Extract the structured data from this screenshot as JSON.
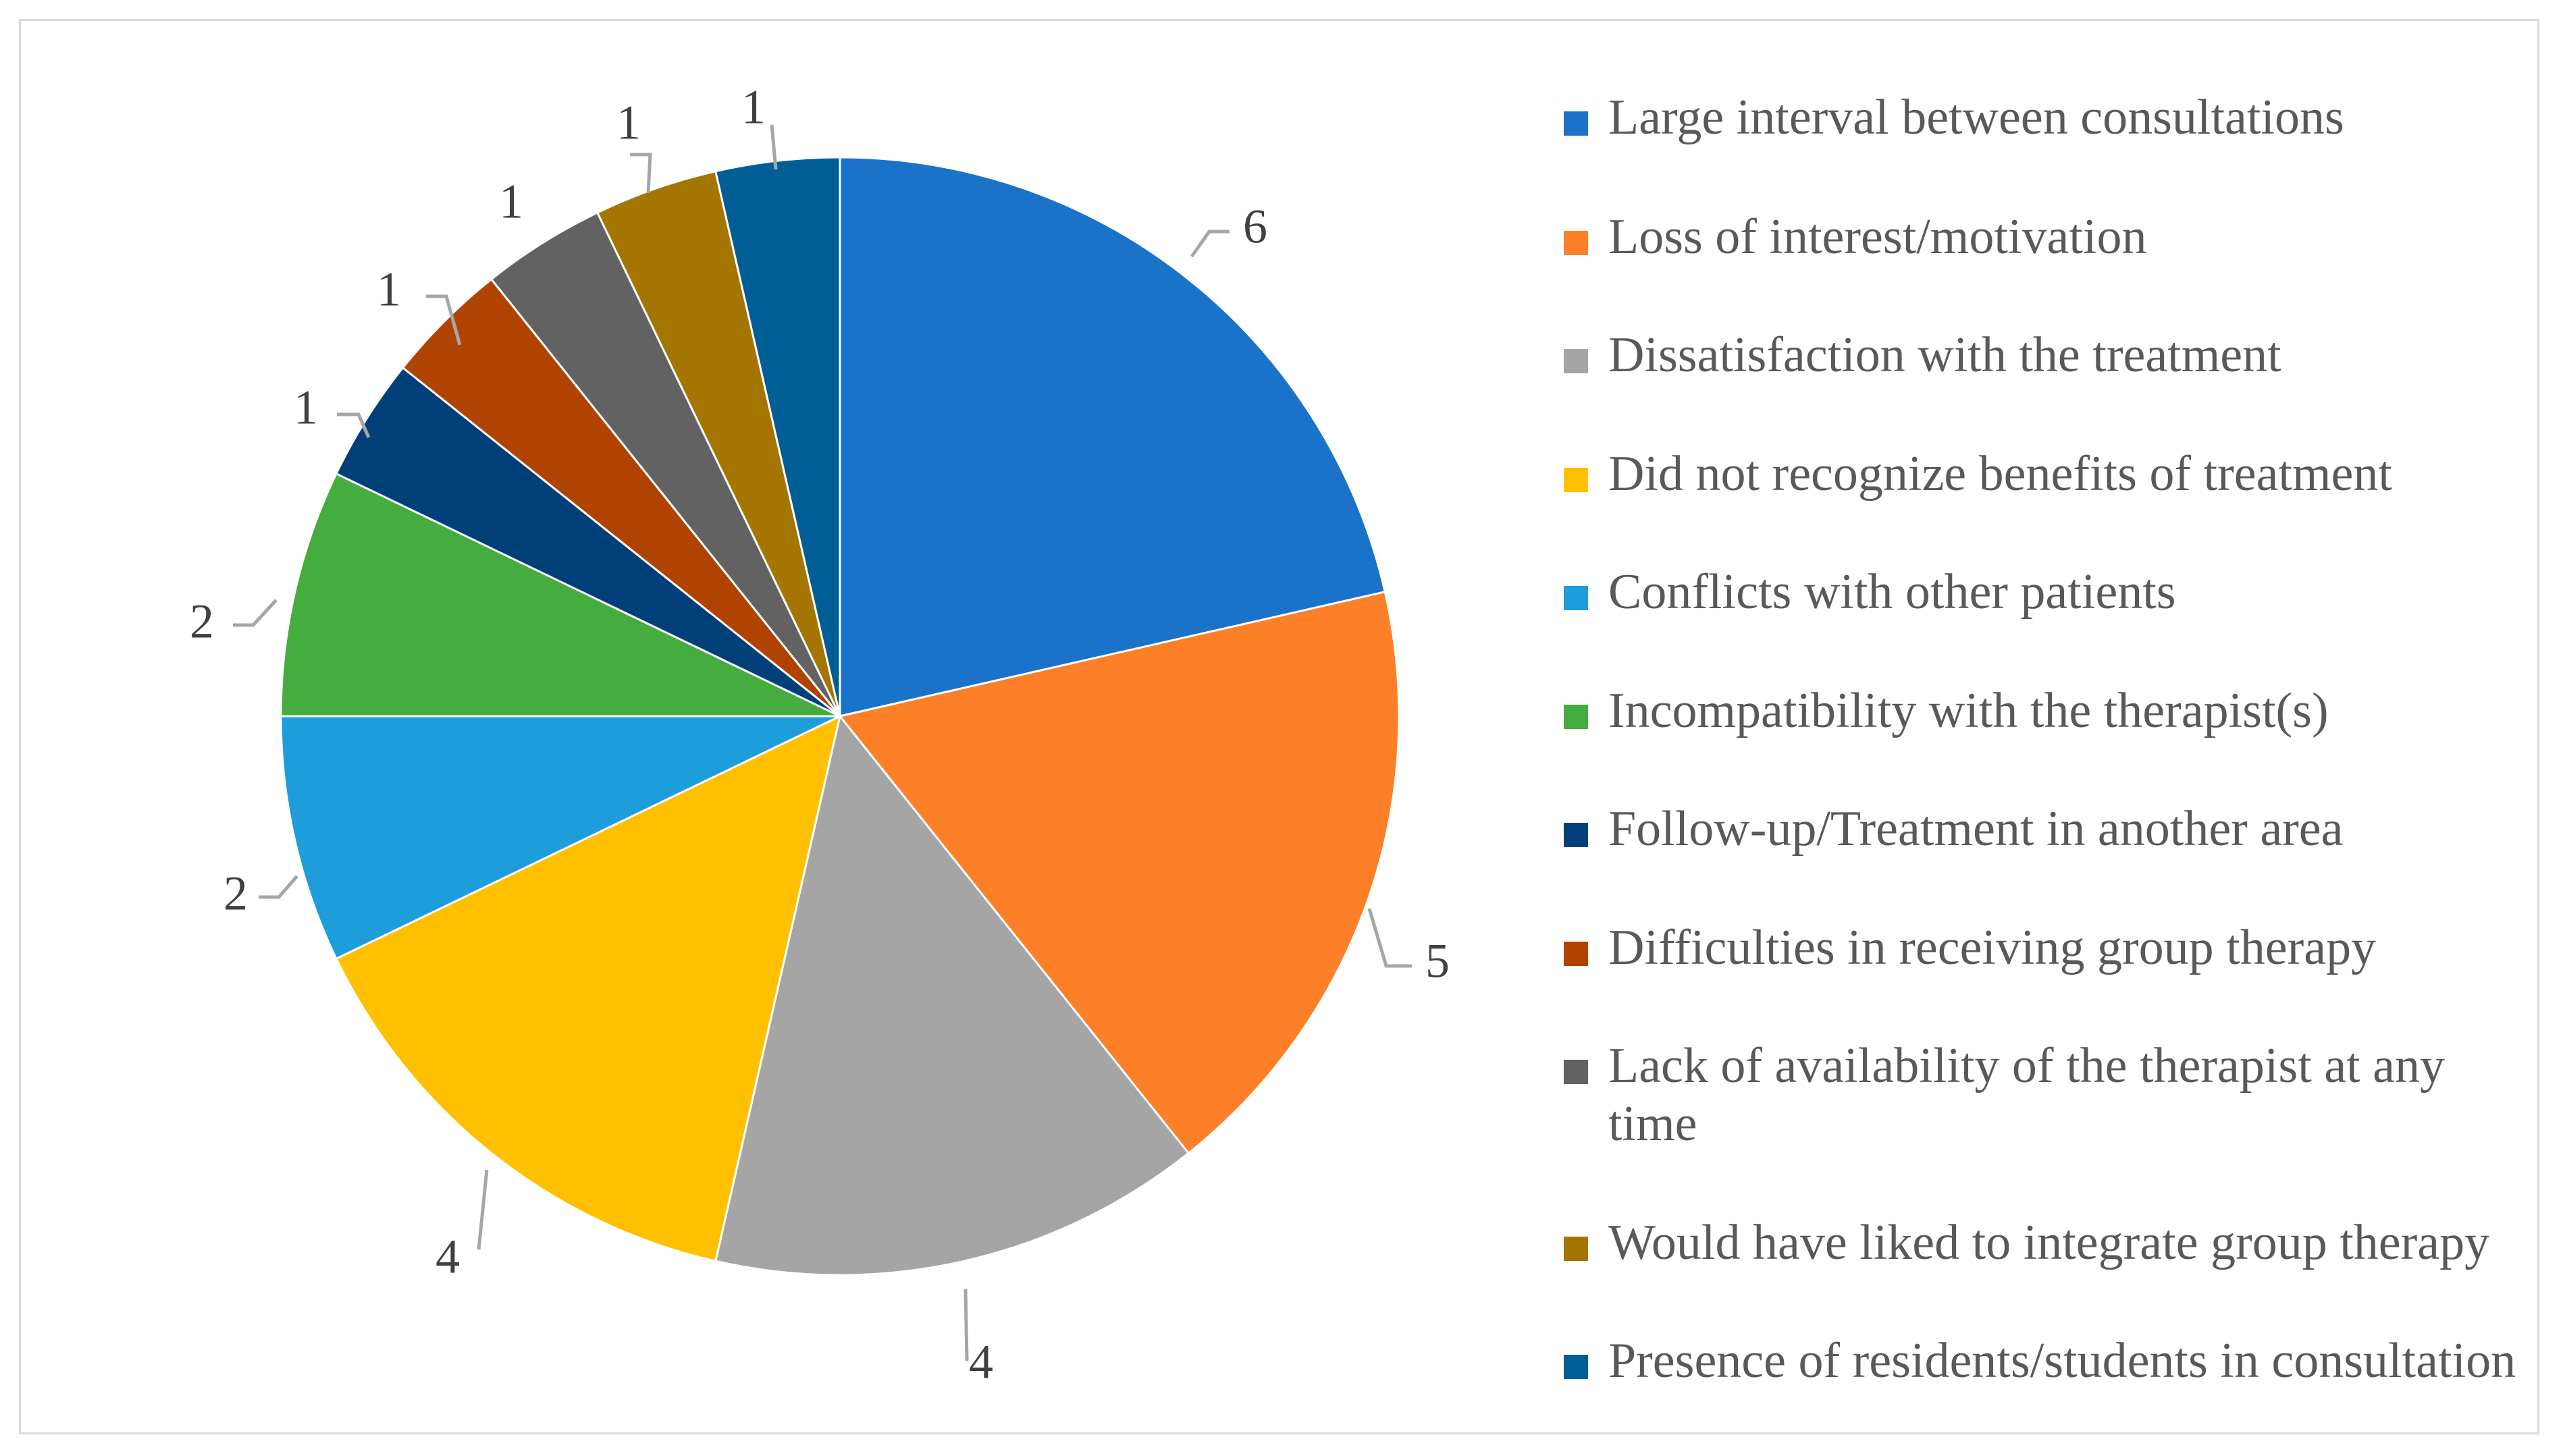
{
  "chart_data": {
    "type": "pie",
    "title": "",
    "categories": [
      "Large interval between consultations",
      "Loss of interest/motivation",
      "Dissatisfaction with the treatment",
      "Did not recognize benefits of treatment",
      "Conflicts with other patients",
      "Incompatibility with the therapist(s)",
      "Follow-up/Treatment in another area",
      "Difficulties in receiving group therapy",
      "Lack of availability of the therapist at any time",
      "Would have liked to integrate group therapy",
      "Presence of residents/students in consultation"
    ],
    "values": [
      6,
      5,
      4,
      4,
      2,
      2,
      1,
      1,
      1,
      1,
      1
    ],
    "data_labels": [
      "6",
      "5",
      "4",
      "4",
      "2",
      "2",
      "1",
      "1",
      "1",
      "1",
      "1"
    ],
    "colors": [
      "#1b72c9",
      "#fd7f27",
      "#a5a5a5",
      "#ffc000",
      "#1e9ddb",
      "#44ad3e",
      "#003f78",
      "#b14300",
      "#626262",
      "#a47500",
      "#005e96"
    ],
    "legend_position": "right"
  }
}
